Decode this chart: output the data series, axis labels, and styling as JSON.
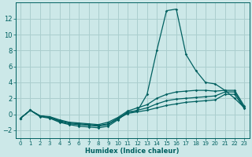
{
  "xlabel": "Humidex (Indice chaleur)",
  "background_color": "#cce8e8",
  "grid_color": "#aacece",
  "line_color": "#006060",
  "xlim": [
    -0.5,
    23.5
  ],
  "ylim": [
    -3.0,
    14.0
  ],
  "xticks": [
    0,
    1,
    2,
    3,
    4,
    5,
    6,
    7,
    8,
    9,
    10,
    11,
    12,
    13,
    14,
    15,
    16,
    17,
    18,
    19,
    20,
    21,
    22,
    23
  ],
  "yticks": [
    -2,
    0,
    2,
    4,
    6,
    8,
    10,
    12
  ],
  "series": [
    [
      [
        0,
        -0.5
      ],
      [
        1,
        0.5
      ],
      [
        2,
        -0.3
      ],
      [
        3,
        -0.5
      ],
      [
        4,
        -1.0
      ],
      [
        5,
        -1.3
      ],
      [
        6,
        -1.5
      ],
      [
        7,
        -1.6
      ],
      [
        8,
        -1.7
      ],
      [
        9,
        -1.5
      ],
      [
        10,
        -0.7
      ],
      [
        11,
        0.3
      ],
      [
        12,
        0.4
      ],
      [
        13,
        2.5
      ],
      [
        14,
        8.0
      ],
      [
        15,
        13.0
      ],
      [
        16,
        13.2
      ],
      [
        17,
        7.5
      ],
      [
        18,
        5.5
      ],
      [
        19,
        4.0
      ],
      [
        20,
        3.8
      ],
      [
        21,
        3.0
      ],
      [
        22,
        2.0
      ],
      [
        23,
        0.8
      ]
    ],
    [
      [
        0,
        -0.5
      ],
      [
        1,
        0.5
      ],
      [
        2,
        -0.2
      ],
      [
        3,
        -0.3
      ],
      [
        4,
        -0.7
      ],
      [
        5,
        -1.0
      ],
      [
        6,
        -1.1
      ],
      [
        7,
        -1.2
      ],
      [
        8,
        -1.3
      ],
      [
        9,
        -1.0
      ],
      [
        10,
        -0.4
      ],
      [
        11,
        0.4
      ],
      [
        12,
        0.8
      ],
      [
        13,
        1.2
      ],
      [
        14,
        2.0
      ],
      [
        15,
        2.5
      ],
      [
        16,
        2.8
      ],
      [
        17,
        2.9
      ],
      [
        18,
        3.0
      ],
      [
        19,
        3.0
      ],
      [
        20,
        2.9
      ],
      [
        21,
        3.0
      ],
      [
        22,
        3.0
      ],
      [
        23,
        1.0
      ]
    ],
    [
      [
        0,
        -0.5
      ],
      [
        1,
        0.5
      ],
      [
        2,
        -0.2
      ],
      [
        3,
        -0.4
      ],
      [
        4,
        -0.8
      ],
      [
        5,
        -1.1
      ],
      [
        6,
        -1.2
      ],
      [
        7,
        -1.3
      ],
      [
        8,
        -1.4
      ],
      [
        9,
        -1.2
      ],
      [
        10,
        -0.5
      ],
      [
        11,
        0.2
      ],
      [
        12,
        0.5
      ],
      [
        13,
        0.8
      ],
      [
        14,
        1.3
      ],
      [
        15,
        1.7
      ],
      [
        16,
        1.9
      ],
      [
        17,
        2.0
      ],
      [
        18,
        2.1
      ],
      [
        19,
        2.2
      ],
      [
        20,
        2.3
      ],
      [
        21,
        2.8
      ],
      [
        22,
        2.8
      ],
      [
        23,
        0.8
      ]
    ],
    [
      [
        0,
        -0.5
      ],
      [
        1,
        0.5
      ],
      [
        2,
        -0.2
      ],
      [
        3,
        -0.4
      ],
      [
        4,
        -0.9
      ],
      [
        5,
        -1.2
      ],
      [
        6,
        -1.3
      ],
      [
        7,
        -1.4
      ],
      [
        8,
        -1.5
      ],
      [
        9,
        -1.3
      ],
      [
        10,
        -0.6
      ],
      [
        11,
        0.1
      ],
      [
        12,
        0.3
      ],
      [
        13,
        0.5
      ],
      [
        14,
        0.8
      ],
      [
        15,
        1.1
      ],
      [
        16,
        1.3
      ],
      [
        17,
        1.5
      ],
      [
        18,
        1.6
      ],
      [
        19,
        1.7
      ],
      [
        20,
        1.8
      ],
      [
        21,
        2.5
      ],
      [
        22,
        2.5
      ],
      [
        23,
        0.7
      ]
    ]
  ]
}
